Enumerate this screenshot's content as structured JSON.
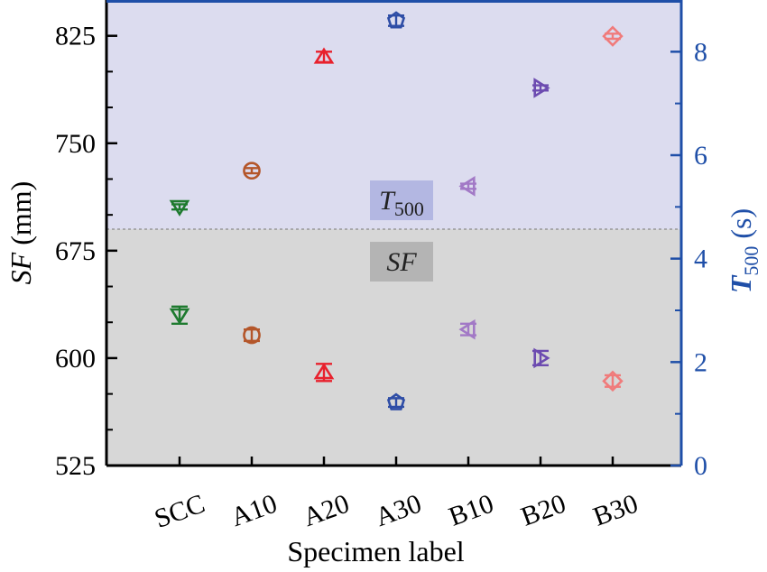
{
  "chart_data": {
    "type": "scatter",
    "categories": [
      "SCC",
      "A10",
      "A20",
      "A30",
      "B10",
      "B20",
      "B30"
    ],
    "xlabel": "Specimen label",
    "y_left": {
      "label_italic": "SF",
      "label_rest": " (mm)",
      "ylim": [
        525,
        850
      ],
      "ticks": [
        525,
        600,
        675,
        750,
        825
      ],
      "color": "#000000"
    },
    "y_right": {
      "label_italic": "T",
      "label_sub": "500",
      "label_rest": " (s)",
      "ylim": [
        0,
        9
      ],
      "ticks": [
        0,
        2,
        4,
        6,
        8
      ],
      "color": "#1f4fa8"
    },
    "split_at_left": 690,
    "grid": false,
    "bands": {
      "upper_label_italic": "T",
      "upper_label_sub": "500",
      "lower_label": "SF",
      "upper_color": "#dcdcef",
      "lower_color": "#d7d7d7",
      "upper_tag_color": "#b3b7e2",
      "lower_tag_color": "#b4b4b4"
    },
    "series": [
      {
        "name": "SF",
        "axis": "left",
        "values": [
          630,
          616,
          590,
          569,
          620,
          600,
          584
        ],
        "errors": [
          6,
          4,
          6,
          3,
          4,
          5,
          4
        ]
      },
      {
        "name": "T500",
        "axis": "right",
        "values": [
          5.0,
          5.7,
          7.9,
          8.6,
          5.4,
          7.3,
          8.3
        ],
        "errors": [
          0.05,
          0.05,
          0.1,
          0.1,
          0.05,
          0.05,
          0.05
        ]
      }
    ],
    "markers": [
      {
        "shape": "triangle-down",
        "color": "#1e7a2f"
      },
      {
        "shape": "circle",
        "color": "#b4562a"
      },
      {
        "shape": "triangle-up",
        "color": "#e8212d"
      },
      {
        "shape": "pentagon",
        "color": "#2e4da6"
      },
      {
        "shape": "triangle-left",
        "color": "#a279c6"
      },
      {
        "shape": "triangle-right",
        "color": "#6c4bb0"
      },
      {
        "shape": "diamond",
        "color": "#f07b7b"
      }
    ]
  }
}
